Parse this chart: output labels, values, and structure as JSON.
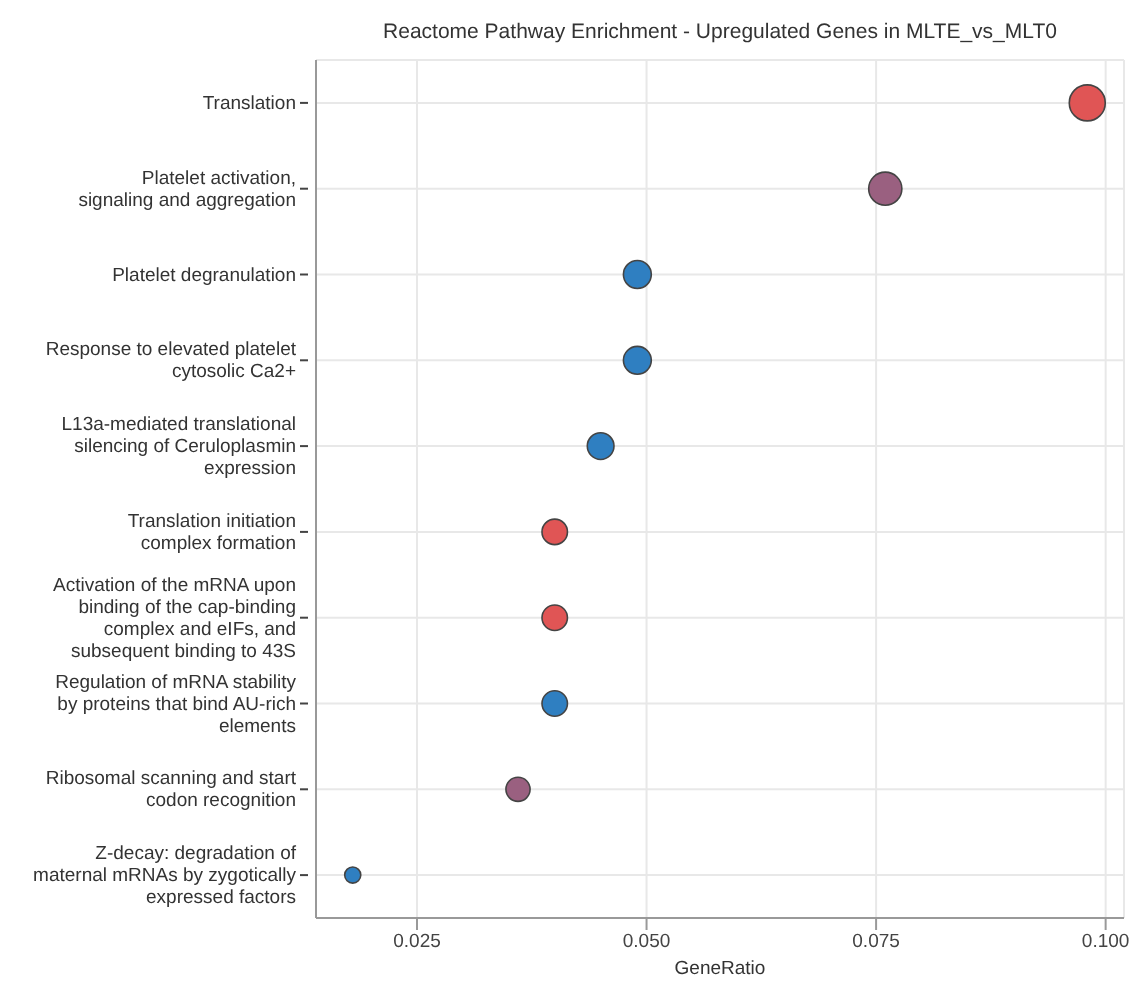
{
  "chart_data": {
    "type": "scatter",
    "title": "Reactome Pathway Enrichment - Upregulated Genes in MLTE_vs_MLT0",
    "xlabel": "GeneRatio",
    "categories": [
      "Translation",
      "Platelet activation, signaling and aggregation",
      "Platelet degranulation",
      "Response to elevated platelet cytosolic Ca2+",
      "L13a-mediated translational silencing of Ceruloplasmin expression",
      "Translation initiation complex formation",
      "Activation of the mRNA upon binding of the cap-binding complex and eIFs, and subsequent binding to 43S",
      "Regulation of mRNA stability by proteins that bind AU-rich elements",
      "Ribosomal scanning and start codon recognition",
      "Z-decay: degradation of maternal mRNAs by zygotically expressed factors"
    ],
    "orientation": "horizontal",
    "values": [
      0.098,
      0.076,
      0.049,
      0.049,
      0.045,
      0.04,
      0.04,
      0.04,
      0.036,
      0.018
    ],
    "sizes": [
      1,
      0.85,
      0.6,
      0.6,
      0.55,
      0.5,
      0.5,
      0.5,
      0.45,
      0.2
    ],
    "colors": [
      "#e05555",
      "#9a6080",
      "#2f7fc1",
      "#2f7fc1",
      "#2f7fc1",
      "#e05555",
      "#e05555",
      "#2f7fc1",
      "#9a6080",
      "#2f7fc1"
    ],
    "xlim": [
      0.014,
      0.102
    ],
    "xticks": [
      {
        "value": 0.025,
        "label": "0.025"
      },
      {
        "value": 0.05,
        "label": "0.050"
      },
      {
        "value": 0.075,
        "label": "0.075"
      },
      {
        "value": 0.1,
        "label": "0.100"
      }
    ],
    "grid": true,
    "marker": "circle"
  }
}
